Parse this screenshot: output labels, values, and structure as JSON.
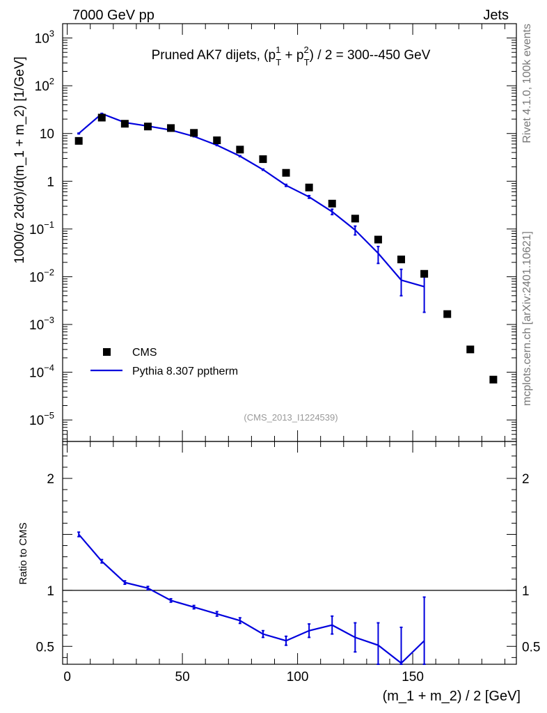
{
  "chart_data": {
    "type": "line",
    "header": {
      "left": "7000 GeV pp",
      "right": "Jets"
    },
    "title": {
      "prefix": "Pruned AK7 dijets, (p",
      "sup1": "1",
      "sub1": "T",
      "mid": " + p",
      "sup2": "2",
      "sub2": "T",
      "suffix": ") / 2 = 300--450 GeV"
    },
    "ylabel": "1000/σ   2dσ)/d(m_1 + m_2) [1/GeV]",
    "ratio_ylabel": "Ratio to CMS",
    "xlabel": "(m_1 + m_2) / 2 [GeV]",
    "xlim": [
      -2,
      195
    ],
    "ylim_log": [
      -5.45,
      3.3
    ],
    "ratio_ylim": [
      0.34,
      2.33
    ],
    "x_ticks": [
      0,
      50,
      100,
      150
    ],
    "y_ticks": [
      {
        "value": 3,
        "label": "10",
        "exp": "3"
      },
      {
        "value": 2,
        "label": "10",
        "exp": "2"
      },
      {
        "value": 1,
        "label": "10",
        "exp": ""
      },
      {
        "value": 0,
        "label": "1",
        "exp": ""
      },
      {
        "value": -1,
        "label": "10",
        "exp": "−1"
      },
      {
        "value": -2,
        "label": "10",
        "exp": "−2"
      },
      {
        "value": -3,
        "label": "10",
        "exp": "−3"
      },
      {
        "value": -4,
        "label": "10",
        "exp": "−4"
      },
      {
        "value": -5,
        "label": "10",
        "exp": "−5"
      }
    ],
    "ratio_ticks": [
      {
        "value": 0.5,
        "label": "0.5"
      },
      {
        "value": 1,
        "label": "1"
      },
      {
        "value": 2,
        "label": "2"
      }
    ],
    "series": [
      {
        "name": "CMS",
        "style": "markers",
        "color": "#000000",
        "x": [
          5,
          15,
          25,
          35,
          45,
          55,
          65,
          75,
          85,
          95,
          105,
          115,
          125,
          135,
          145,
          155,
          165,
          175,
          185
        ],
        "y": [
          7.0,
          21.5,
          16.0,
          14.0,
          13.0,
          10.3,
          7.2,
          4.6,
          2.9,
          1.5,
          0.74,
          0.34,
          0.165,
          0.06,
          0.023,
          0.0115,
          0.00165,
          0.0003,
          7e-05
        ]
      },
      {
        "name": "Pythia 8.307 pptherm",
        "style": "line",
        "color": "#0000dd",
        "x": [
          5,
          15,
          25,
          35,
          45,
          55,
          65,
          75,
          85,
          95,
          105,
          115,
          125,
          135,
          145,
          155
        ],
        "y": [
          10.0,
          26.0,
          17.0,
          14.3,
          11.8,
          8.7,
          5.7,
          3.35,
          1.75,
          0.82,
          0.47,
          0.23,
          0.095,
          0.031,
          0.0085,
          0.0062
        ],
        "y_err_low": [
          0.2,
          0.4,
          0.3,
          0.25,
          0.2,
          0.15,
          0.12,
          0.08,
          0.05,
          0.04,
          0.03,
          0.03,
          0.02,
          0.012,
          0.0045,
          0.0044
        ],
        "y_err_high": [
          0.2,
          0.4,
          0.3,
          0.25,
          0.2,
          0.15,
          0.12,
          0.08,
          0.05,
          0.04,
          0.03,
          0.03,
          0.02,
          0.012,
          0.0058,
          0.0068
        ],
        "ratio": [
          1.5,
          1.26,
          1.07,
          1.02,
          0.91,
          0.85,
          0.79,
          0.73,
          0.61,
          0.55,
          0.64,
          0.69,
          0.58,
          0.51,
          0.35,
          0.55
        ],
        "ratio_err": [
          0.02,
          0.015,
          0.015,
          0.015,
          0.015,
          0.015,
          0.02,
          0.025,
          0.03,
          0.04,
          0.06,
          0.08,
          0.13,
          0.2,
          0.32,
          0.39
        ]
      }
    ],
    "reference_line": 1,
    "analysis_label": "(CMS_2013_I1224539)",
    "side_label_top": "Rivet 4.1.0,  100k events",
    "side_label_bottom": "mcplots.cern.ch [arXiv:2401.10621]"
  }
}
